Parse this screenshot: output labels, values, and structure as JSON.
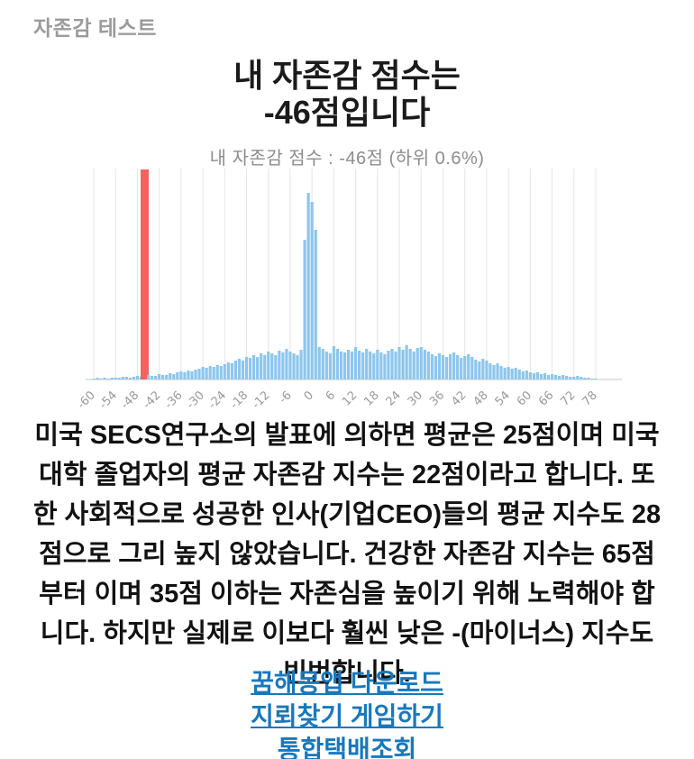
{
  "header": {
    "title": "자존감 테스트"
  },
  "result": {
    "line1": "내 자존감 점수는",
    "line2": "-46점입니다"
  },
  "description": "미국 SECS연구소의 발표에 의하면 평균은 25점이며 미국 대학 졸업자의 평균 자존감 지수는 22점이라고 합니다. 또한 사회적으로 성공한 인사(기업CEO)들의 평균 지수도 28점으로 그리 높지 않았습니다. 건강한 자존감 지수는 65점부터 이며 35점 이하는 자존심을 높이기 위해 노력해야 합니다. 하지만 실제로 이보다 훨씬 낮은 -(마이너스) 지수도 빈번합니다.",
  "links": [
    {
      "label": "꿈해몽앱 다운로드"
    },
    {
      "label": "지뢰찾기 게임하기"
    },
    {
      "label": "통합택배조회"
    }
  ],
  "colors": {
    "bar_blue": "#8dc6ee",
    "bar_red": "#f4625e",
    "gridline": "#e4e4e4",
    "axis_line": "#c9c9c9",
    "tick_label": "#9a9a9a",
    "link_blue": "#1778be",
    "header_gray": "#9b9b9b",
    "subtitle_gray": "#8d8d8d"
  },
  "chart_data": {
    "type": "bar",
    "title": "내 자존감 점수 :  -46점 (하위 0.6%)",
    "xlabel": "",
    "ylabel": "",
    "x_start": -60,
    "x_end": 78,
    "bin_width": 1,
    "ticks": [
      "-60",
      "-54",
      "-48",
      "-42",
      "-36",
      "-30",
      "-24",
      "-18",
      "-12",
      "-6",
      "0",
      "6",
      "12",
      "18",
      "24",
      "30",
      "36",
      "42",
      "48",
      "54",
      "60",
      "66",
      "72",
      "78"
    ],
    "highlight_x": -46,
    "grid": true,
    "legend": false,
    "ylim": [
      0,
      233
    ],
    "values": [
      1,
      2,
      1,
      2,
      1,
      2,
      2,
      2,
      3,
      3,
      2,
      3,
      4,
      3,
      233,
      5,
      4,
      4,
      6,
      5,
      5,
      7,
      6,
      8,
      9,
      8,
      10,
      9,
      11,
      12,
      14,
      13,
      15,
      14,
      16,
      15,
      17,
      19,
      18,
      21,
      23,
      21,
      25,
      24,
      27,
      25,
      29,
      27,
      31,
      29,
      27,
      32,
      30,
      34,
      31,
      29,
      27,
      33,
      155,
      207,
      197,
      166,
      36,
      34,
      31,
      29,
      37,
      34,
      31,
      30,
      33,
      31,
      36,
      32,
      30,
      34,
      31,
      29,
      33,
      30,
      28,
      32,
      34,
      31,
      36,
      33,
      38,
      34,
      31,
      35,
      36,
      33,
      31,
      28,
      26,
      29,
      27,
      25,
      28,
      30,
      27,
      24,
      26,
      28,
      25,
      22,
      20,
      23,
      21,
      18,
      16,
      18,
      15,
      13,
      14,
      12,
      13,
      11,
      9,
      10,
      8,
      7,
      8,
      6,
      7,
      5,
      6,
      5,
      4,
      5,
      4,
      3,
      3,
      4,
      3,
      2,
      2,
      1,
      1
    ]
  }
}
